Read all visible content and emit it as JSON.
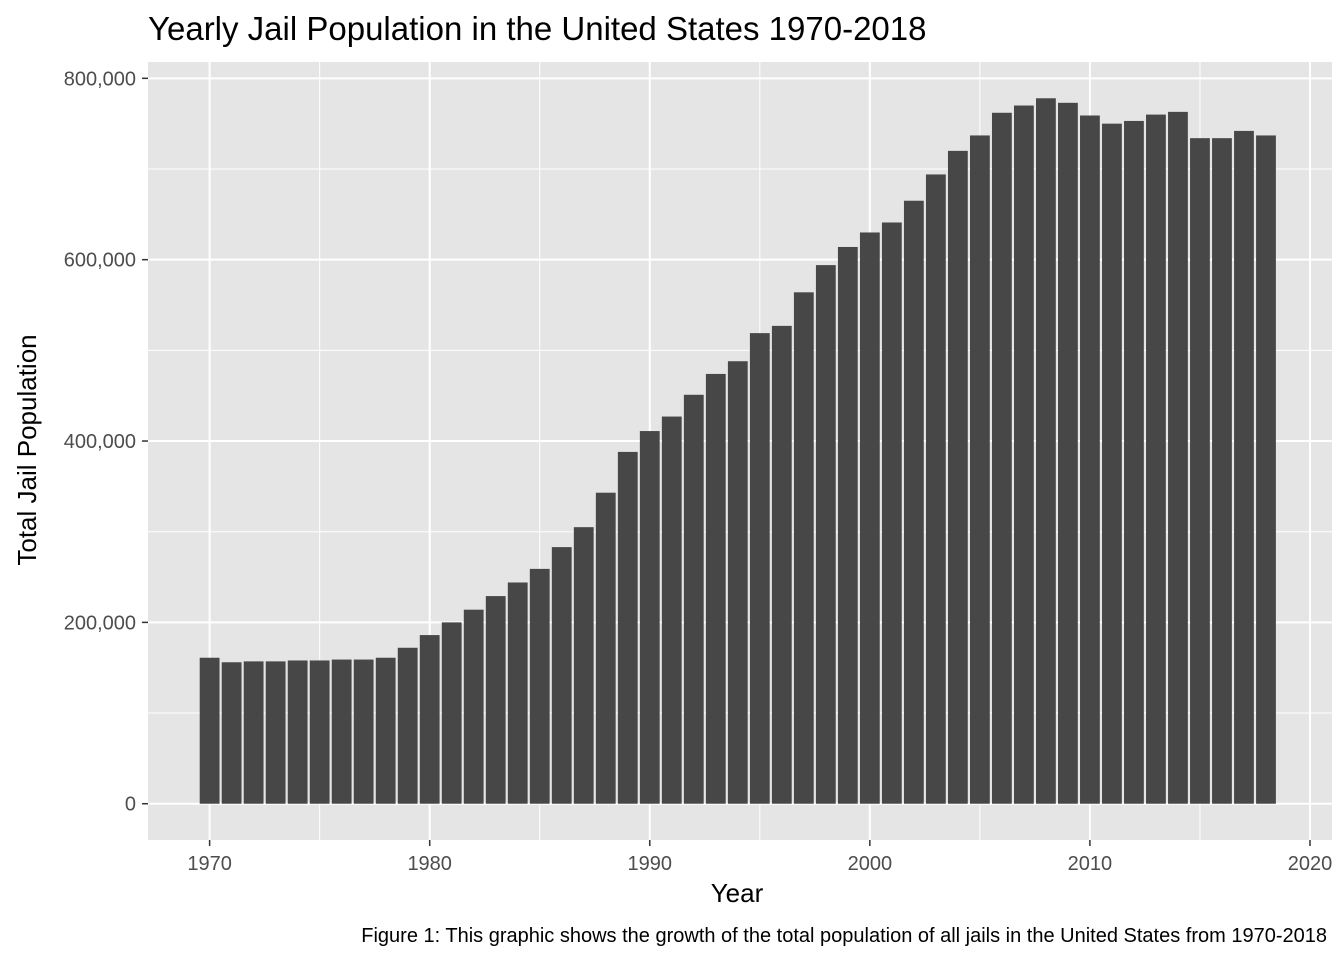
{
  "chart_data": {
    "type": "bar",
    "title": "Yearly Jail Population in the United States 1970-2018",
    "xlabel": "Year",
    "ylabel": "Total Jail Population",
    "caption": "Figure 1: This graphic shows the growth of the total population of all jails in the United States from 1970-2018",
    "x": [
      1970,
      1971,
      1972,
      1973,
      1974,
      1975,
      1976,
      1977,
      1978,
      1979,
      1980,
      1981,
      1982,
      1983,
      1984,
      1985,
      1986,
      1987,
      1988,
      1989,
      1990,
      1991,
      1992,
      1993,
      1994,
      1995,
      1996,
      1997,
      1998,
      1999,
      2000,
      2001,
      2002,
      2003,
      2004,
      2005,
      2006,
      2007,
      2008,
      2009,
      2010,
      2011,
      2012,
      2013,
      2014,
      2015,
      2016,
      2017,
      2018
    ],
    "values": [
      161000,
      156000,
      157000,
      157000,
      158000,
      158000,
      159000,
      159000,
      161000,
      172000,
      186000,
      200000,
      214000,
      229000,
      244000,
      259000,
      283000,
      305000,
      343000,
      388000,
      411000,
      427000,
      451000,
      474000,
      488000,
      519000,
      527000,
      564000,
      594000,
      614000,
      630000,
      641000,
      665000,
      694000,
      720000,
      737000,
      762000,
      770000,
      778000,
      773000,
      759000,
      750000,
      753000,
      760000,
      763000,
      734000,
      734000,
      742000,
      737000
    ],
    "xlim": [
      1967.2,
      2021
    ],
    "ylim": [
      -40000,
      818000
    ],
    "x_ticks": [
      "1970",
      "1980",
      "1990",
      "2000",
      "2010",
      "2020"
    ],
    "y_ticks": [
      "0",
      "200,000",
      "400,000",
      "600,000",
      "800,000"
    ],
    "grid": true,
    "legend": "none",
    "colors": {
      "bar": "#474747",
      "panel": "#e5e5e5",
      "grid": "#ffffff"
    }
  }
}
